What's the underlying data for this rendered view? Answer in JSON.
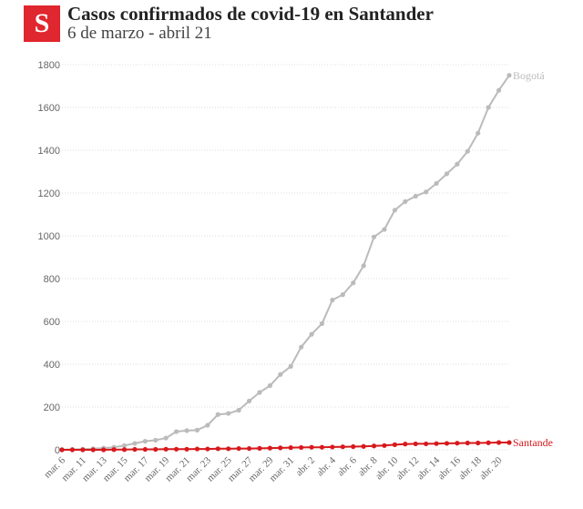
{
  "header": {
    "logo_letter": "S",
    "title": "Casos confirmados de covid-19 en Santander",
    "subtitle": "6 de marzo - abril 21"
  },
  "colors": {
    "brand": "#e0262e",
    "bogota": "#bbbbbb",
    "santander": "#d7191c",
    "grid": "#dddddd"
  },
  "chart_data": {
    "type": "line",
    "title": "Casos confirmados de covid-19 en Santander",
    "subtitle": "6 de marzo - abril 21",
    "xlabel": "",
    "ylabel": "",
    "ylim": [
      0,
      1800
    ],
    "yticks": [
      0,
      200,
      400,
      600,
      800,
      1000,
      1200,
      1400,
      1600,
      1800
    ],
    "grid": true,
    "legend": "series labels at line ends (right)",
    "x_tick_labels": [
      "mar. 6",
      "mar. 11",
      "mar. 13",
      "mar. 15",
      "mar. 17",
      "mar. 19",
      "mar. 21",
      "mar. 23",
      "mar. 25",
      "mar. 27",
      "mar. 29",
      "mar. 31",
      "abr. 2",
      "abr. 4",
      "abr. 6",
      "abr. 8",
      "abr. 10",
      "abr. 12",
      "abr. 14",
      "abr. 16",
      "abr. 18",
      "abr. 20"
    ],
    "x": [
      "mar. 6",
      "mar. 10",
      "mar. 11",
      "mar. 12",
      "mar. 13",
      "mar. 14",
      "mar. 15",
      "mar. 16",
      "mar. 17",
      "mar. 18",
      "mar. 19",
      "mar. 20",
      "mar. 21",
      "mar. 22",
      "mar. 23",
      "mar. 24",
      "mar. 25",
      "mar. 26",
      "mar. 27",
      "mar. 28",
      "mar. 29",
      "mar. 30",
      "mar. 31",
      "abr. 1",
      "abr. 2",
      "abr. 3",
      "abr. 4",
      "abr. 5",
      "abr. 6",
      "abr. 7",
      "abr. 8",
      "abr. 9",
      "abr. 10",
      "abr. 11",
      "abr. 12",
      "abr. 13",
      "abr. 14",
      "abr. 15",
      "abr. 16",
      "abr. 17",
      "abr. 18",
      "abr. 19",
      "abr. 20",
      "abr. 21"
    ],
    "series": [
      {
        "name": "Bogotá",
        "color": "#bbbbbb",
        "values": [
          1,
          2,
          3,
          5,
          8,
          12,
          20,
          30,
          40,
          45,
          55,
          85,
          90,
          92,
          115,
          165,
          170,
          185,
          228,
          268,
          300,
          352,
          390,
          480,
          540,
          590,
          700,
          725,
          780,
          860,
          995,
          1030,
          1120,
          1160,
          1185,
          1205,
          1245,
          1290,
          1335,
          1395,
          1480,
          1600,
          1680,
          1750
        ]
      },
      {
        "name": "Santande",
        "color": "#d7191c",
        "values": [
          0,
          0,
          0,
          0,
          0,
          1,
          1,
          2,
          2,
          2,
          3,
          3,
          3,
          4,
          4,
          5,
          5,
          6,
          6,
          7,
          8,
          9,
          10,
          11,
          12,
          12,
          13,
          14,
          15,
          16,
          18,
          20,
          24,
          27,
          28,
          28,
          29,
          30,
          31,
          32,
          32,
          33,
          34,
          34
        ]
      }
    ]
  }
}
